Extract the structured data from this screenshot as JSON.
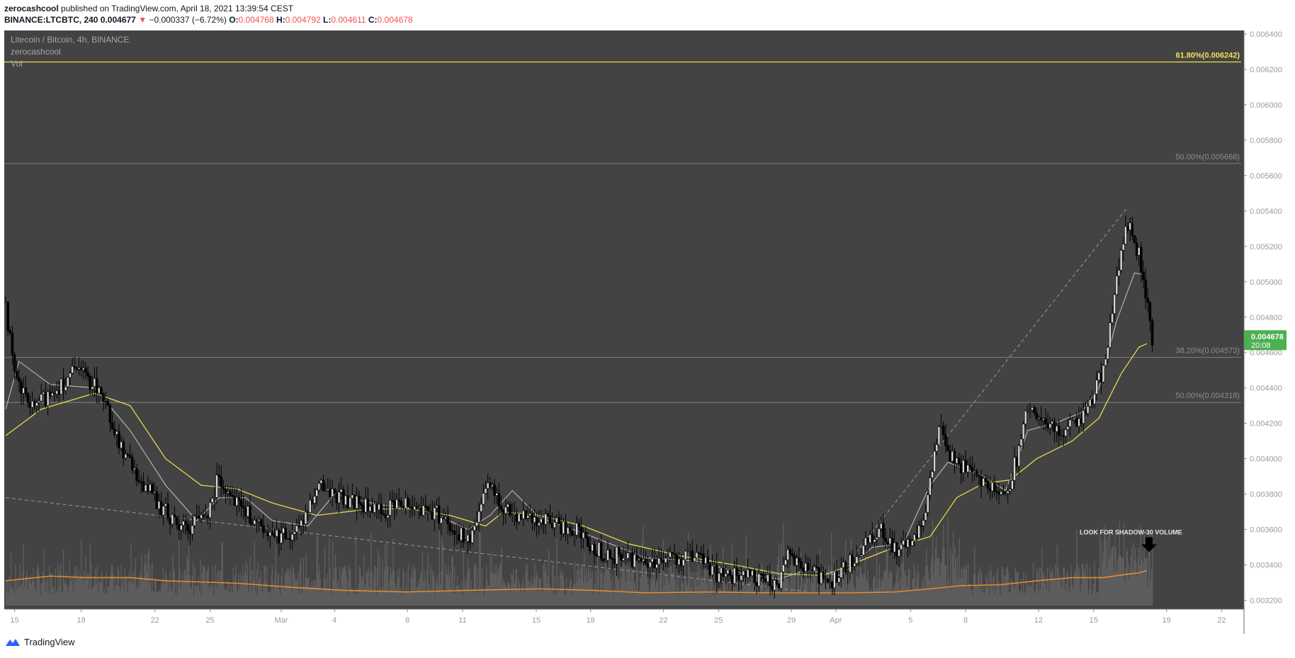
{
  "header": {
    "author": "zerocashcool",
    "published_text": "published on TradingView.com, April 18, 2021 13:39:54 CEST",
    "symbol_line": "BINANCE:LTCBTC, 240",
    "last": "0.004677",
    "change": "−0.000337 (−6.72%)",
    "o_label": "O:",
    "o_val": "0.004768",
    "h_label": "H:",
    "h_val": "0.004792",
    "l_label": "L:",
    "l_val": "0.004611",
    "c_label": "C:",
    "c_val": "0.004678"
  },
  "legend": {
    "title": "Litecoin / Bitcoin, 4h, BINANCE",
    "author": "zerocashcool",
    "vol": "Vol"
  },
  "footer": {
    "brand": "TradingView"
  },
  "colors": {
    "bg": "#434343",
    "candle": "#000000",
    "ma_fast": "#b2b2b2",
    "ma_slow": "#e6d84b",
    "vol_ma": "#f0902a",
    "price_badge": "#4caf50",
    "fib_gold": "#f0e040"
  },
  "chart_data": {
    "type": "candlestick",
    "y_axis": {
      "min": 0.00315,
      "max": 0.00642,
      "ticks": [
        "0.006400",
        "0.006200",
        "0.006000",
        "0.005800",
        "0.005600",
        "0.005400",
        "0.005200",
        "0.005000",
        "0.004800",
        "0.004600",
        "0.004400",
        "0.004200",
        "0.004000",
        "0.003800",
        "0.003600",
        "0.003400",
        "0.003200"
      ]
    },
    "x_axis": {
      "labels": [
        {
          "t": 10,
          "label": "15"
        },
        {
          "t": 85,
          "label": "18"
        },
        {
          "t": 168,
          "label": "22"
        },
        {
          "t": 230,
          "label": "25"
        },
        {
          "t": 310,
          "label": "Mar"
        },
        {
          "t": 370,
          "label": "4"
        },
        {
          "t": 452,
          "label": "8"
        },
        {
          "t": 514,
          "label": "11"
        },
        {
          "t": 597,
          "label": "15"
        },
        {
          "t": 658,
          "label": "18"
        },
        {
          "t": 740,
          "label": "22"
        },
        {
          "t": 802,
          "label": "25"
        },
        {
          "t": 884,
          "label": "29"
        },
        {
          "t": 934,
          "label": "Apr"
        },
        {
          "t": 1018,
          "label": "5"
        },
        {
          "t": 1080,
          "label": "8"
        },
        {
          "t": 1162,
          "label": "12"
        },
        {
          "t": 1224,
          "label": "15"
        },
        {
          "t": 1306,
          "label": "19"
        },
        {
          "t": 1368,
          "label": "22"
        }
      ],
      "last_t": 1290,
      "max_t": 1390
    },
    "price_path": [
      [
        0,
        0.00488
      ],
      [
        10,
        0.00445
      ],
      [
        30,
        0.00428
      ],
      [
        80,
        0.0045
      ],
      [
        105,
        0.0044
      ],
      [
        135,
        0.004
      ],
      [
        175,
        0.00372
      ],
      [
        200,
        0.0036
      ],
      [
        225,
        0.00368
      ],
      [
        240,
        0.0039
      ],
      [
        262,
        0.00375
      ],
      [
        295,
        0.00355
      ],
      [
        330,
        0.0036
      ],
      [
        350,
        0.00385
      ],
      [
        380,
        0.00378
      ],
      [
        420,
        0.0037
      ],
      [
        450,
        0.00376
      ],
      [
        490,
        0.00368
      ],
      [
        520,
        0.00352
      ],
      [
        545,
        0.00386
      ],
      [
        560,
        0.00372
      ],
      [
        600,
        0.00365
      ],
      [
        640,
        0.0036
      ],
      [
        670,
        0.00347
      ],
      [
        720,
        0.00342
      ],
      [
        775,
        0.00345
      ],
      [
        800,
        0.00335
      ],
      [
        840,
        0.00332
      ],
      [
        868,
        0.00328
      ],
      [
        880,
        0.00348
      ],
      [
        900,
        0.00338
      ],
      [
        930,
        0.0033
      ],
      [
        945,
        0.00338
      ],
      [
        985,
        0.00362
      ],
      [
        1005,
        0.00346
      ],
      [
        1030,
        0.0036
      ],
      [
        1050,
        0.00418
      ],
      [
        1065,
        0.004
      ],
      [
        1110,
        0.00385
      ],
      [
        1125,
        0.00378
      ],
      [
        1140,
        0.00405
      ],
      [
        1150,
        0.0043
      ],
      [
        1180,
        0.00415
      ],
      [
        1210,
        0.0042
      ],
      [
        1235,
        0.0045
      ],
      [
        1250,
        0.005
      ],
      [
        1262,
        0.00535
      ],
      [
        1275,
        0.00515
      ],
      [
        1283,
        0.0049
      ],
      [
        1290,
        0.00468
      ]
    ],
    "ma_fast_path": [
      [
        0,
        0.00428
      ],
      [
        15,
        0.00455
      ],
      [
        50,
        0.00442
      ],
      [
        100,
        0.0044
      ],
      [
        140,
        0.00416
      ],
      [
        180,
        0.00385
      ],
      [
        215,
        0.00365
      ],
      [
        240,
        0.00378
      ],
      [
        270,
        0.00378
      ],
      [
        300,
        0.00365
      ],
      [
        340,
        0.00362
      ],
      [
        370,
        0.0038
      ],
      [
        420,
        0.00374
      ],
      [
        470,
        0.00372
      ],
      [
        520,
        0.0036
      ],
      [
        545,
        0.00368
      ],
      [
        570,
        0.00382
      ],
      [
        600,
        0.00367
      ],
      [
        660,
        0.00356
      ],
      [
        720,
        0.00344
      ],
      [
        780,
        0.00342
      ],
      [
        830,
        0.00335
      ],
      [
        870,
        0.00332
      ],
      [
        900,
        0.00337
      ],
      [
        940,
        0.00334
      ],
      [
        975,
        0.0035
      ],
      [
        1010,
        0.00352
      ],
      [
        1040,
        0.00385
      ],
      [
        1060,
        0.00398
      ],
      [
        1100,
        0.0039
      ],
      [
        1125,
        0.00382
      ],
      [
        1150,
        0.00416
      ],
      [
        1180,
        0.0042
      ],
      [
        1210,
        0.00426
      ],
      [
        1230,
        0.0044
      ],
      [
        1250,
        0.00478
      ],
      [
        1270,
        0.00505
      ],
      [
        1280,
        0.00504
      ]
    ],
    "ma_slow_path": [
      [
        0,
        0.00413
      ],
      [
        40,
        0.00428
      ],
      [
        100,
        0.00437
      ],
      [
        140,
        0.0043
      ],
      [
        180,
        0.004
      ],
      [
        220,
        0.00385
      ],
      [
        260,
        0.00383
      ],
      [
        300,
        0.00375
      ],
      [
        350,
        0.00368
      ],
      [
        400,
        0.00371
      ],
      [
        450,
        0.00372
      ],
      [
        500,
        0.00368
      ],
      [
        540,
        0.00362
      ],
      [
        560,
        0.0037
      ],
      [
        600,
        0.00368
      ],
      [
        650,
        0.00362
      ],
      [
        700,
        0.00352
      ],
      [
        760,
        0.00345
      ],
      [
        820,
        0.0034
      ],
      [
        870,
        0.00335
      ],
      [
        920,
        0.00334
      ],
      [
        960,
        0.00342
      ],
      [
        1000,
        0.0035
      ],
      [
        1040,
        0.00356
      ],
      [
        1070,
        0.00378
      ],
      [
        1100,
        0.00386
      ],
      [
        1130,
        0.00388
      ],
      [
        1160,
        0.004
      ],
      [
        1200,
        0.0041
      ],
      [
        1230,
        0.00423
      ],
      [
        1255,
        0.00448
      ],
      [
        1275,
        0.00463
      ],
      [
        1284,
        0.00465
      ]
    ],
    "volume_ma_path": [
      [
        0,
        0.2
      ],
      [
        50,
        0.26
      ],
      [
        90,
        0.24
      ],
      [
        140,
        0.24
      ],
      [
        180,
        0.2
      ],
      [
        260,
        0.17
      ],
      [
        320,
        0.12
      ],
      [
        380,
        0.08
      ],
      [
        450,
        0.06
      ],
      [
        520,
        0.08
      ],
      [
        600,
        0.1
      ],
      [
        660,
        0.08
      ],
      [
        720,
        0.05
      ],
      [
        790,
        0.06
      ],
      [
        860,
        0.05
      ],
      [
        950,
        0.05
      ],
      [
        1000,
        0.06
      ],
      [
        1040,
        0.1
      ],
      [
        1075,
        0.14
      ],
      [
        1120,
        0.15
      ],
      [
        1160,
        0.2
      ],
      [
        1200,
        0.24
      ],
      [
        1235,
        0.24
      ],
      [
        1260,
        0.28
      ],
      [
        1275,
        0.3
      ],
      [
        1284,
        0.33
      ]
    ],
    "volume_ma_scale": 0.00045,
    "fib_levels": [
      {
        "price": 0.006242,
        "label": "61.80%(0.006242)",
        "highlight": true
      },
      {
        "price": 0.005668,
        "label": "50.00%(0.005668)",
        "highlight": false
      },
      {
        "price": 0.004573,
        "label": "38.20%(0.004573)",
        "highlight": false
      },
      {
        "price": 0.004318,
        "label": "50.00%(0.004318)",
        "highlight": false
      }
    ],
    "trendlines": [
      {
        "from": [
          0,
          0.00378
        ],
        "to": [
          900,
          0.00325
        ],
        "style": "dashed"
      },
      {
        "from": [
          930,
          0.0033
        ],
        "to": [
          1262,
          0.00542
        ],
        "style": "dashed"
      }
    ],
    "last_price": {
      "value": "0.004678",
      "countdown": "20:08",
      "price": 0.004678
    },
    "annotation": {
      "text": "LOOK FOR SHADOW-30 VOLUME",
      "t": 1280,
      "price": 0.0035
    }
  }
}
